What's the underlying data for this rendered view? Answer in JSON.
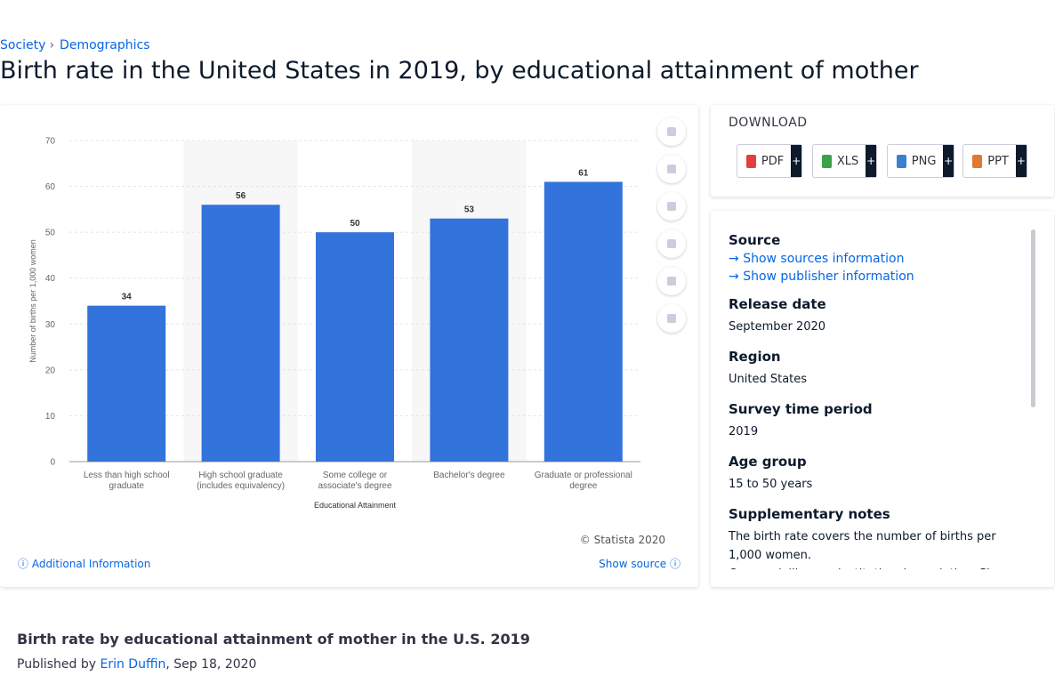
{
  "breadcrumb": [
    "Society",
    "Demographics"
  ],
  "title": "Birth rate in the United States in 2019, by educational attainment of mother",
  "chart_data": {
    "type": "bar",
    "categories": [
      "Less than high school graduate",
      "High school graduate (includes equivalency)",
      "Some college or associate's degree",
      "Bachelor's degree",
      "Graduate or professional degree"
    ],
    "values": [
      34,
      56,
      50,
      53,
      61
    ],
    "color": "#3373dc",
    "ylim": [
      0,
      70
    ],
    "yticks": [
      0,
      10,
      20,
      30,
      40,
      50,
      60,
      70
    ],
    "grid": true,
    "y_label": "Number of births per 1,000 women",
    "x_label": "Educational Attainment",
    "credit": "© Statista 2020"
  },
  "chart_links": {
    "additional": "Additional Information",
    "source": "Show source"
  },
  "download": {
    "title": "DOWNLOAD",
    "formats": [
      "PDF",
      "XLS",
      "PNG",
      "PPT"
    ],
    "more": "+"
  },
  "details": {
    "source_label": "Source",
    "source_links": [
      "Show sources information",
      "Show publisher information"
    ],
    "fields": [
      {
        "label": "Release date",
        "value": [
          "September 2020"
        ]
      },
      {
        "label": "Region",
        "value": [
          "United States"
        ]
      },
      {
        "label": "Survey time period",
        "value": [
          "2019"
        ]
      },
      {
        "label": "Age group",
        "value": [
          "15 to 50 years"
        ]
      },
      {
        "label": "Supplementary notes",
        "value": [
          "The birth rate covers the number of births per 1,000 women.",
          "Covers civilian noninstitutional population. Since"
        ]
      }
    ]
  },
  "footer": {
    "title": "Birth rate by educational attainment of mother in the U.S. 2019",
    "published_prefix": "Published by",
    "author": "Erin Duffin",
    "date": ", Sep 18, 2020"
  }
}
